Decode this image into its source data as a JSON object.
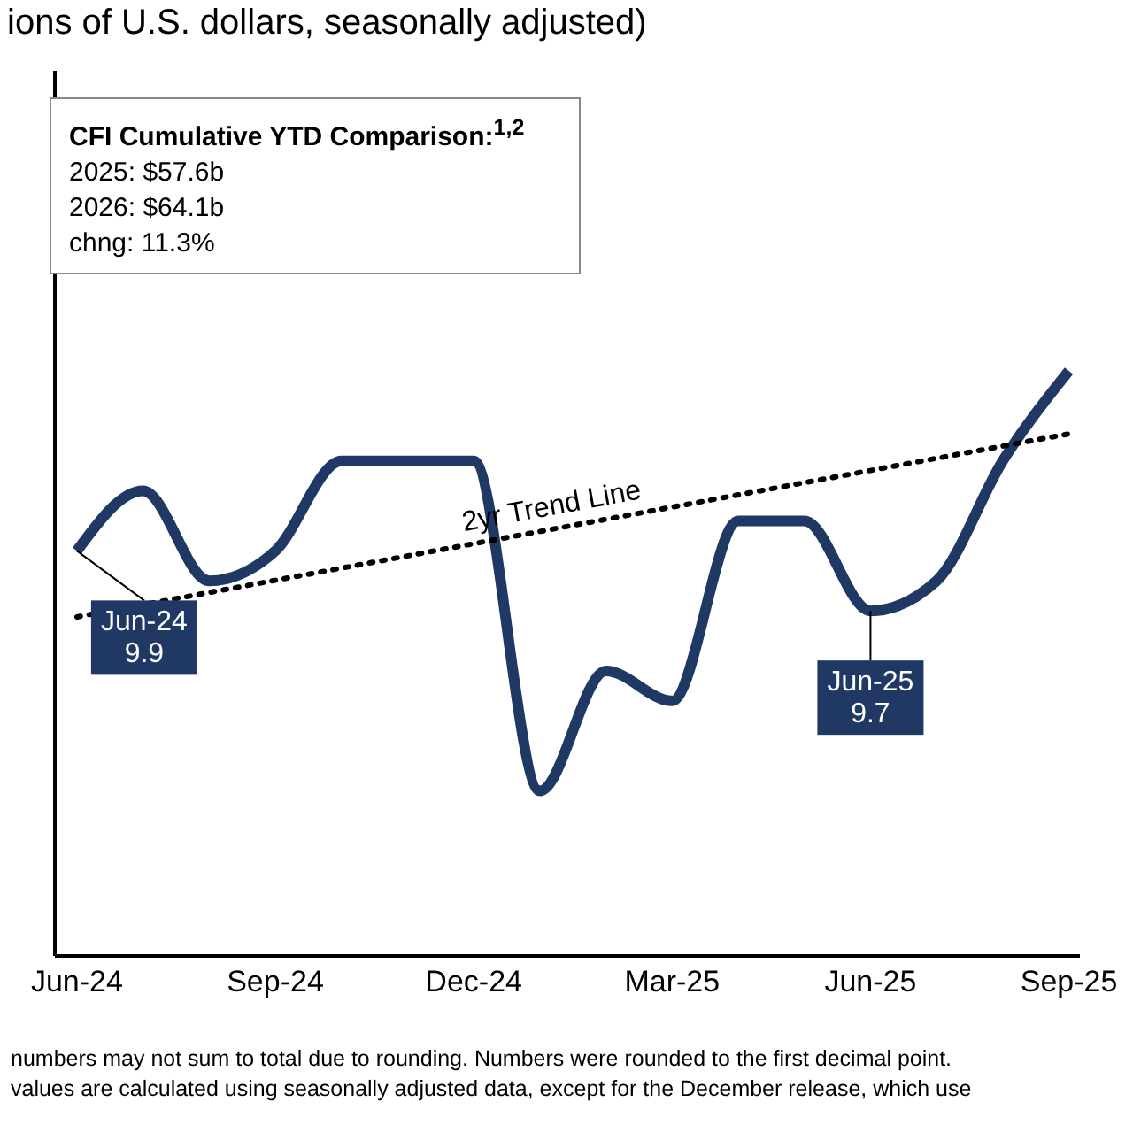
{
  "chart_data": {
    "type": "line",
    "title": "ions of U.S. dollars, seasonally adjusted)",
    "annotations": [
      "CFI Cumulative YTD Comparison:$^{1,2}$\n2025: $57.6b\n2026: $64.1b\nchng: 11.3%",
      "numbers may not sum to total due to rounding. Numbers were rounded to the first decimal point.",
      "values are calculated using seasonally adjusted data, except for the December release, which use"
    ],
    "x": [
      "2024-06",
      "2024-07",
      "2024-08",
      "2024-09",
      "2024-10",
      "2024-11",
      "2024-12",
      "2025-01",
      "2025-02",
      "2025-03",
      "2025-04",
      "2025-05",
      "2025-06",
      "2025-07",
      "2025-08",
      "2025-09"
    ],
    "series": [
      {
        "color": "#1f3864",
        "values": [
          9.9,
          10.1,
          9.8,
          9.9,
          10.2,
          10.2,
          10.2,
          9.1,
          9.5,
          9.4,
          10.0,
          10.0,
          9.7,
          9.8,
          10.2,
          10.5
        ],
        "value_labels": [
          "Jun-24\n9.9",
          null,
          null,
          null,
          null,
          null,
          null,
          null,
          null,
          null,
          null,
          null,
          "Jun-25\n9.7",
          null,
          null,
          null
        ]
      },
      {
        "name": "2yr Trend Line",
        "type": "line",
        "color": "#000000",
        "line_style": "dotted",
        "x": [
          "2024-06",
          "2025-09"
        ],
        "values": [
          9.68,
          10.29
        ]
      }
    ],
    "xlim": [
      "2024-05-21",
      "2025-09-06"
    ],
    "xticks": [
      {
        "value": "2024-06",
        "label": "Jun-24"
      },
      {
        "value": "2024-09",
        "label": "Sep-24"
      },
      {
        "value": "2024-12",
        "label": "Dec-24"
      },
      {
        "value": "2025-03",
        "label": "Mar-25"
      },
      {
        "value": "2025-06",
        "label": "Jun-25"
      },
      {
        "value": "2025-09",
        "label": "Sep-25"
      }
    ],
    "ylim": [
      8.55,
      11.5
    ],
    "tick_labels": "x",
    "grid": false,
    "legend": false,
    "marker": "none"
  }
}
